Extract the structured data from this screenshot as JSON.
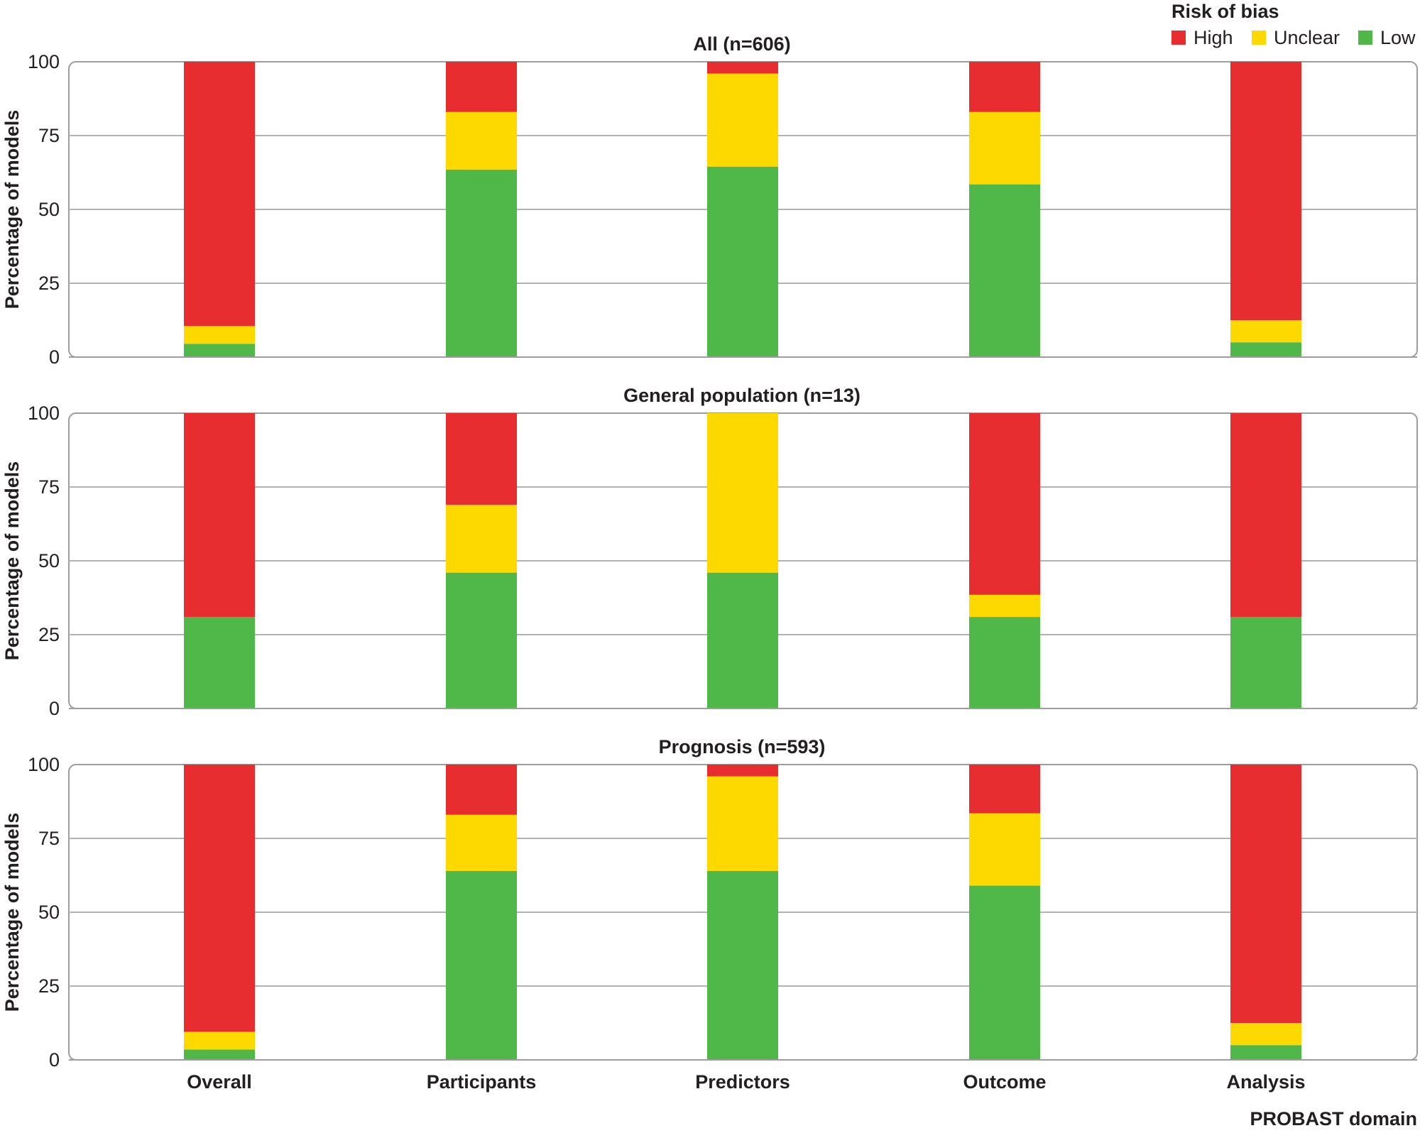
{
  "chart_data": {
    "type": "bar",
    "stacked": true,
    "legend": {
      "title": "Risk of bias",
      "placement": "top-right",
      "entries": [
        "High",
        "Unclear",
        "Low"
      ]
    },
    "colors": {
      "High": "#e72d2f",
      "Unclear": "#fdd900",
      "Low": "#50b848",
      "grid": "#b3b3b3",
      "frame": "#9d9d9d",
      "text": "#231f20"
    },
    "xlabel": "PROBAST domain",
    "ylabel": "Percentage of models",
    "ylim": [
      0,
      100
    ],
    "yticks": [
      0,
      25,
      50,
      75,
      100
    ],
    "grid": true,
    "categories": [
      "Overall",
      "Participants",
      "Predictors",
      "Outcome",
      "Analysis"
    ],
    "panels": [
      {
        "title": "All (n=606)",
        "series": [
          {
            "name": "Low",
            "values": [
              4.5,
              63.5,
              64.5,
              58.5,
              5
            ]
          },
          {
            "name": "Unclear",
            "values": [
              6,
              19.5,
              31.5,
              24.5,
              7.5
            ]
          },
          {
            "name": "High",
            "values": [
              89.5,
              17,
              4,
              17,
              87.5
            ]
          }
        ]
      },
      {
        "title": "General population (n=13)",
        "series": [
          {
            "name": "Low",
            "values": [
              31,
              46,
              46,
              31,
              31
            ]
          },
          {
            "name": "Unclear",
            "values": [
              0,
              23,
              54,
              7.5,
              0
            ]
          },
          {
            "name": "High",
            "values": [
              69,
              31,
              0,
              61.5,
              69
            ]
          }
        ]
      },
      {
        "title": "Prognosis (n=593)",
        "series": [
          {
            "name": "Low",
            "values": [
              3.5,
              64,
              64,
              59,
              5
            ]
          },
          {
            "name": "Unclear",
            "values": [
              6,
              19,
              32,
              24.5,
              7.5
            ]
          },
          {
            "name": "High",
            "values": [
              90.5,
              17,
              4,
              16.5,
              87.5
            ]
          }
        ]
      }
    ]
  }
}
